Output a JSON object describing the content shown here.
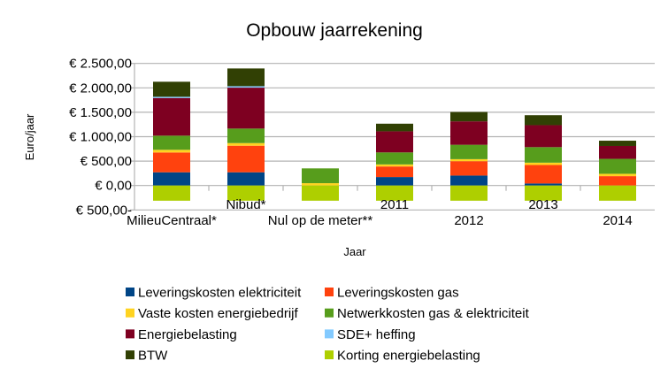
{
  "chart_data": {
    "type": "bar",
    "stacked": true,
    "title": "Opbouw jaarrekening",
    "xlabel": "Jaar",
    "ylabel": "Euro/jaar",
    "ylim": [
      -500,
      2500
    ],
    "yticks": [
      2500,
      2000,
      1500,
      1000,
      500,
      0,
      -500
    ],
    "ytick_labels": [
      "€ 2.500,00",
      "€ 2.000,00",
      "€ 1.500,00",
      "€ 1.000,00",
      "€ 500,00",
      "€ 0,00",
      "€ 500,00-"
    ],
    "negative_tick_color": "#ff0000",
    "grid": true,
    "legend_position": "bottom",
    "categories": [
      "MilieuCentraal*",
      "Nibud*",
      "Nul op de meter**",
      "2011",
      "2012",
      "2013",
      "2014"
    ],
    "series": [
      {
        "name": "Leveringskosten elektriciteit",
        "color": "#004586",
        "values": [
          271,
          271,
          0,
          174,
          204,
          42,
          0
        ]
      },
      {
        "name": "Leveringskosten gas",
        "color": "#ff420e",
        "values": [
          406,
          544,
          0,
          216,
          294,
          378,
          192
        ]
      },
      {
        "name": "Vaste kosten energiebedrijf",
        "color": "#ffd320",
        "values": [
          54,
          54,
          48,
          42,
          42,
          48,
          48
        ]
      },
      {
        "name": "Netwerkkosten gas & elektriciteit",
        "color": "#579d1c",
        "values": [
          290,
          297,
          303,
          246,
          294,
          318,
          306
        ]
      },
      {
        "name": "Energiebelasting",
        "color": "#7e0021",
        "values": [
          771,
          838,
          0,
          432,
          480,
          450,
          264
        ]
      },
      {
        "name": "SDE+ heffing",
        "color": "#83caff",
        "values": [
          25,
          30,
          0,
          0,
          0,
          0,
          0
        ]
      },
      {
        "name": "BTW",
        "color": "#314004",
        "values": [
          308,
          363,
          0,
          156,
          192,
          204,
          108
        ]
      },
      {
        "name": "Korting energiebelasting",
        "color": "#aecf00",
        "values": [
          -311,
          -311,
          -311,
          -311,
          -311,
          -311,
          -311
        ]
      }
    ]
  }
}
